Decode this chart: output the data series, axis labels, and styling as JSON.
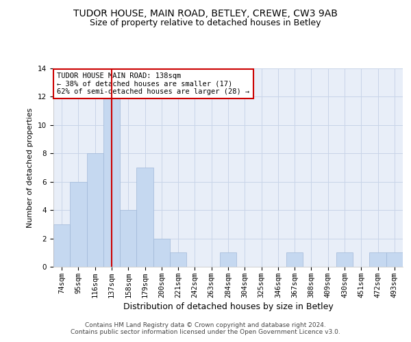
{
  "title1": "TUDOR HOUSE, MAIN ROAD, BETLEY, CREWE, CW3 9AB",
  "title2": "Size of property relative to detached houses in Betley",
  "xlabel": "Distribution of detached houses by size in Betley",
  "ylabel": "Number of detached properties",
  "categories": [
    "74sqm",
    "95sqm",
    "116sqm",
    "137sqm",
    "158sqm",
    "179sqm",
    "200sqm",
    "221sqm",
    "242sqm",
    "263sqm",
    "284sqm",
    "304sqm",
    "325sqm",
    "346sqm",
    "367sqm",
    "388sqm",
    "409sqm",
    "430sqm",
    "451sqm",
    "472sqm",
    "493sqm"
  ],
  "values": [
    3,
    6,
    8,
    12,
    4,
    7,
    2,
    1,
    0,
    0,
    1,
    0,
    0,
    0,
    1,
    0,
    0,
    1,
    0,
    1,
    1
  ],
  "bar_color": "#c5d8f0",
  "bar_edge_color": "#a0b8d8",
  "highlight_index": 3,
  "highlight_line_color": "#cc0000",
  "annotation_text": "TUDOR HOUSE MAIN ROAD: 138sqm\n← 38% of detached houses are smaller (17)\n62% of semi-detached houses are larger (28) →",
  "annotation_box_color": "#ffffff",
  "annotation_box_edge": "#cc0000",
  "ylim": [
    0,
    14
  ],
  "yticks": [
    0,
    2,
    4,
    6,
    8,
    10,
    12,
    14
  ],
  "footer": "Contains HM Land Registry data © Crown copyright and database right 2024.\nContains public sector information licensed under the Open Government Licence v3.0.",
  "background_color": "#ffffff",
  "plot_bg_color": "#e8eef8",
  "grid_color": "#c8d4e8",
  "title1_fontsize": 10,
  "title2_fontsize": 9,
  "xlabel_fontsize": 9,
  "ylabel_fontsize": 8,
  "tick_fontsize": 7.5,
  "annot_fontsize": 7.5,
  "footer_fontsize": 6.5
}
